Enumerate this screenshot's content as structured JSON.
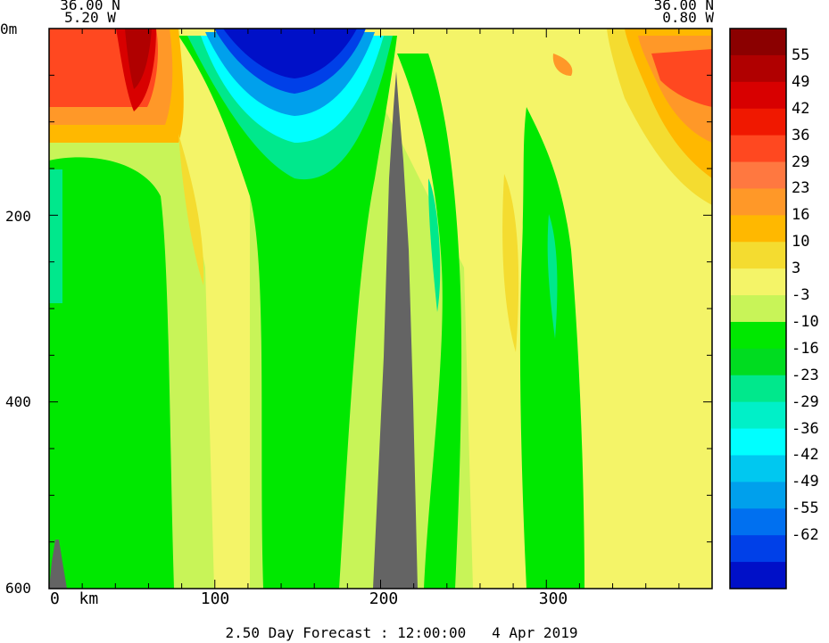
{
  "header": {
    "left_lat": "36.00 N",
    "left_lon": "5.20 W",
    "right_lat": "36.00 N",
    "right_lon": "0.80 W"
  },
  "footer": {
    "forecast": "2.50 Day Forecast : 12:00:00   4 Apr 2019"
  },
  "chart_data": {
    "type": "heatmap",
    "title": "",
    "xlabel": "km",
    "ylabel": "m",
    "xlim": [
      0,
      400
    ],
    "ylim": [
      600,
      0
    ],
    "x_ticks": [
      {
        "value": 0,
        "label": "0  km"
      },
      {
        "value": 100,
        "label": "100"
      },
      {
        "value": 200,
        "label": "200"
      },
      {
        "value": 300,
        "label": "300"
      }
    ],
    "y_ticks": [
      {
        "value": 0,
        "label": "0m"
      },
      {
        "value": 200,
        "label": "200"
      },
      {
        "value": 400,
        "label": "400"
      },
      {
        "value": 600,
        "label": "600"
      }
    ],
    "colorbar": {
      "labels": [
        "55",
        "49",
        "42",
        "36",
        "29",
        "23",
        "16",
        "10",
        "3",
        "-3",
        "-10",
        "-16",
        "-23",
        "-29",
        "-36",
        "-42",
        "-49",
        "-55",
        "-62"
      ],
      "colors": [
        "#8b0000",
        "#b00000",
        "#d80000",
        "#f01800",
        "#ff4820",
        "#ff7840",
        "#ff9828",
        "#ffb800",
        "#f4dc30",
        "#f4f468",
        "#c8f458",
        "#00e800",
        "#00dc20",
        "#00e88c",
        "#00f0c8",
        "#00ffff",
        "#00c8f0",
        "#00a0ec",
        "#0070f0",
        "#0040e8",
        "#0010c8"
      ]
    },
    "series": [
      {
        "x": 10,
        "depth": [
          20,
          70,
          150,
          300,
          500
        ],
        "values": [
          42,
          36,
          -3,
          -10,
          -10
        ]
      },
      {
        "x": 50,
        "depth": [
          20,
          70,
          150,
          300,
          500
        ],
        "values": [
          49,
          42,
          10,
          -10,
          -10
        ]
      },
      {
        "x": 100,
        "depth": [
          20,
          70,
          150,
          300,
          500
        ],
        "values": [
          -10,
          -3,
          3,
          3,
          3
        ]
      },
      {
        "x": 150,
        "depth": [
          20,
          70,
          150,
          300,
          500
        ],
        "values": [
          -62,
          -49,
          -23,
          -10,
          -10
        ]
      },
      {
        "x": 200,
        "depth": [
          20,
          70,
          150,
          300,
          500
        ],
        "values": [
          -42,
          3,
          -3,
          -3,
          -3
        ]
      },
      {
        "x": 250,
        "depth": [
          20,
          70,
          150,
          300,
          500
        ],
        "values": [
          -3,
          3,
          3,
          3,
          3
        ]
      },
      {
        "x": 300,
        "depth": [
          20,
          70,
          150,
          300,
          500
        ],
        "values": [
          16,
          3,
          3,
          -3,
          3
        ]
      },
      {
        "x": 370,
        "depth": [
          20,
          70,
          150,
          300,
          500
        ],
        "values": [
          36,
          29,
          16,
          3,
          3
        ]
      }
    ],
    "topography": [
      {
        "x": 0,
        "top_depth": 545
      },
      {
        "x": 200,
        "top_depth": 80
      }
    ]
  }
}
